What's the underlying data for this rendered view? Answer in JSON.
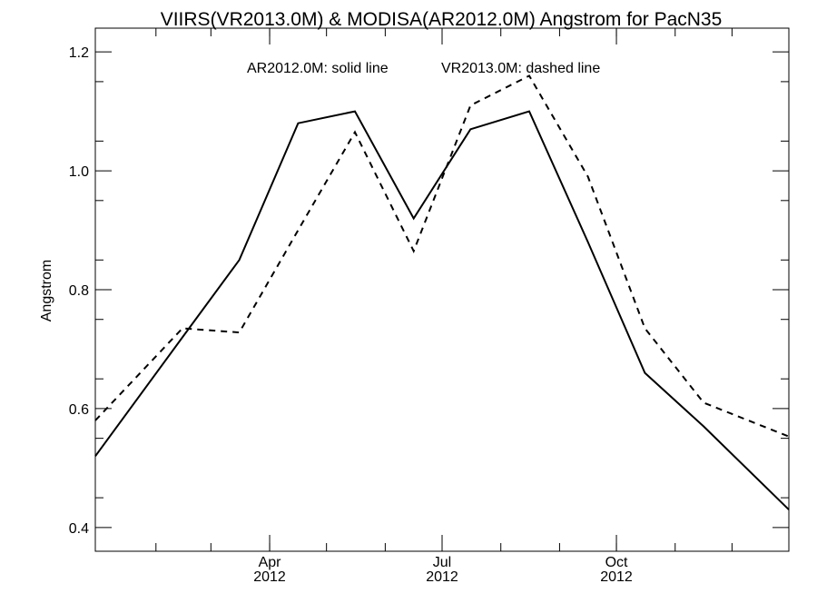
{
  "chart_data": {
    "type": "line",
    "title": "VIIRS(VR2013.0M) & MODISA(AR2012.0M)  Angstrom for PacN35",
    "xlabel": "",
    "ylabel": "Angstrom",
    "legend_text": {
      "solid": "AR2012.0M: solid line",
      "dashed": "VR2013.0M: dashed line"
    },
    "xlim": [
      "2011-12-31",
      "2012-12-31"
    ],
    "ylim": [
      0.36,
      1.24
    ],
    "x_ticks": [
      {
        "date": "2012-04-01",
        "label": [
          "Apr",
          "2012"
        ]
      },
      {
        "date": "2012-07-01",
        "label": [
          "Jul",
          "2012"
        ]
      },
      {
        "date": "2012-10-01",
        "label": [
          "Oct",
          "2012"
        ]
      }
    ],
    "y_ticks": [
      {
        "value": 0.4,
        "label": "0.4"
      },
      {
        "value": 0.6,
        "label": "0.6"
      },
      {
        "value": 0.8,
        "label": "0.8"
      },
      {
        "value": 1.0,
        "label": "1.0"
      },
      {
        "value": 1.2,
        "label": "1.2"
      }
    ],
    "series": [
      {
        "name": "AR2012.0M",
        "style": "solid",
        "x": [
          "2011-12-31",
          "2012-02-15",
          "2012-03-16",
          "2012-04-16",
          "2012-05-16",
          "2012-06-16",
          "2012-07-16",
          "2012-08-16",
          "2012-09-16",
          "2012-10-16",
          "2012-11-16",
          "2012-12-31"
        ],
        "values": [
          0.52,
          0.72,
          0.85,
          1.08,
          1.1,
          0.92,
          1.07,
          1.1,
          0.88,
          0.66,
          0.57,
          0.43
        ]
      },
      {
        "name": "VR2013.0M",
        "style": "dashed",
        "x": [
          "2011-12-31",
          "2012-02-15",
          "2012-03-16",
          "2012-04-16",
          "2012-05-16",
          "2012-06-16",
          "2012-07-16",
          "2012-08-16",
          "2012-09-16",
          "2012-10-16",
          "2012-11-16",
          "2012-12-31"
        ],
        "values": [
          0.58,
          0.735,
          0.728,
          0.9,
          1.065,
          0.865,
          1.11,
          1.16,
          0.99,
          0.735,
          0.61,
          0.553
        ]
      }
    ],
    "grid": false
  }
}
